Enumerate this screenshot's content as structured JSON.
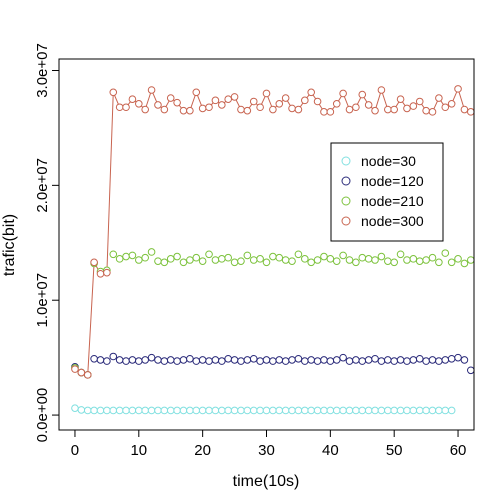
{
  "chart_data": {
    "type": "scatter",
    "title": "",
    "xlabel": "time(10s)",
    "ylabel": "trafic(bit)",
    "xlim": [
      -2.5,
      62.5
    ],
    "ylim": [
      -1300000,
      31000000
    ],
    "x_ticks": [
      0,
      10,
      20,
      30,
      40,
      50,
      60
    ],
    "x_tick_labels": [
      "0",
      "10",
      "20",
      "30",
      "40",
      "50",
      "60"
    ],
    "y_ticks": [
      0,
      10000000,
      20000000,
      30000000
    ],
    "y_tick_labels": [
      "0.0e+00",
      "1.0e+07",
      "2.0e+07",
      "3.0e+07"
    ],
    "grid": false,
    "legend_position": "right",
    "series": [
      {
        "name": "node=30",
        "color": "#80e0e0",
        "x": [
          0,
          1,
          2,
          3,
          4,
          5,
          6,
          7,
          8,
          9,
          10,
          11,
          12,
          13,
          14,
          15,
          16,
          17,
          18,
          19,
          20,
          21,
          22,
          23,
          24,
          25,
          26,
          27,
          28,
          29,
          30,
          31,
          32,
          33,
          34,
          35,
          36,
          37,
          38,
          39,
          40,
          41,
          42,
          43,
          44,
          45,
          46,
          47,
          48,
          49,
          50,
          51,
          52,
          53,
          54,
          55,
          56,
          57,
          58,
          59
        ],
        "y": [
          600000,
          450000,
          400000,
          400000,
          400000,
          400000,
          400000,
          400000,
          400000,
          400000,
          400000,
          400000,
          400000,
          400000,
          400000,
          400000,
          400000,
          400000,
          400000,
          400000,
          400000,
          400000,
          400000,
          400000,
          400000,
          400000,
          400000,
          400000,
          400000,
          400000,
          400000,
          400000,
          400000,
          400000,
          400000,
          400000,
          400000,
          400000,
          400000,
          400000,
          400000,
          400000,
          400000,
          400000,
          400000,
          400000,
          400000,
          400000,
          400000,
          400000,
          400000,
          400000,
          400000,
          400000,
          400000,
          400000,
          400000,
          400000,
          400000,
          400000
        ]
      },
      {
        "name": "node=120",
        "color": "#2a2a7a",
        "x": [
          0,
          1,
          2,
          3,
          4,
          5,
          6,
          7,
          8,
          9,
          10,
          11,
          12,
          13,
          14,
          15,
          16,
          17,
          18,
          19,
          20,
          21,
          22,
          23,
          24,
          25,
          26,
          27,
          28,
          29,
          30,
          31,
          32,
          33,
          34,
          35,
          36,
          37,
          38,
          39,
          40,
          41,
          42,
          43,
          44,
          45,
          46,
          47,
          48,
          49,
          50,
          51,
          52,
          53,
          54,
          55,
          56,
          57,
          58,
          59,
          60,
          61,
          62
        ],
        "y": [
          4200000,
          3700000,
          3500000,
          4900000,
          4800000,
          4700000,
          5100000,
          4800000,
          4700000,
          4800000,
          4700000,
          4800000,
          5000000,
          4800000,
          4700000,
          4800000,
          4700000,
          4800000,
          4900000,
          4700000,
          4800000,
          4700000,
          4800000,
          4700000,
          4900000,
          4800000,
          4700000,
          4800000,
          4900000,
          4700000,
          4800000,
          4700000,
          4800000,
          4700000,
          4800000,
          4900000,
          4700000,
          4800000,
          4700000,
          4800000,
          4700000,
          4800000,
          5000000,
          4700000,
          4800000,
          4700000,
          4800000,
          4900000,
          4700000,
          4800000,
          4700000,
          4800000,
          4700000,
          4800000,
          4900000,
          4700000,
          4800000,
          4700000,
          4800000,
          4900000,
          5000000,
          4800000,
          3900000
        ]
      },
      {
        "name": "node=210",
        "color": "#7cc23c",
        "x": [
          0,
          1,
          2,
          3,
          4,
          5,
          6,
          7,
          8,
          9,
          10,
          11,
          12,
          13,
          14,
          15,
          16,
          17,
          18,
          19,
          20,
          21,
          22,
          23,
          24,
          25,
          26,
          27,
          28,
          29,
          30,
          31,
          32,
          33,
          34,
          35,
          36,
          37,
          38,
          39,
          40,
          41,
          42,
          43,
          44,
          45,
          46,
          47,
          48,
          49,
          50,
          51,
          52,
          53,
          54,
          55,
          56,
          57,
          58,
          59,
          60,
          61,
          62
        ],
        "y": [
          4100000,
          3700000,
          3500000,
          13200000,
          12500000,
          12600000,
          14000000,
          13600000,
          13800000,
          13900000,
          13500000,
          13700000,
          14200000,
          13400000,
          13300000,
          13600000,
          13800000,
          13300000,
          13500000,
          13700000,
          13400000,
          14000000,
          13500000,
          13600000,
          13700000,
          13300000,
          13400000,
          13900000,
          13500000,
          13600000,
          13300000,
          13800000,
          13700000,
          13500000,
          13400000,
          14000000,
          13600000,
          13300000,
          13500000,
          13800000,
          13600000,
          13400000,
          13900000,
          13500000,
          13300000,
          13700000,
          13600000,
          13500000,
          13800000,
          13400000,
          13300000,
          14000000,
          13500000,
          13600000,
          13400000,
          13500000,
          13700000,
          13300000,
          14100000,
          13300000,
          13600000,
          13200000,
          13500000
        ]
      },
      {
        "name": "node=300",
        "color": "#c86450",
        "x": [
          0,
          1,
          2,
          3,
          4,
          5,
          6,
          7,
          8,
          9,
          10,
          11,
          12,
          13,
          14,
          15,
          16,
          17,
          18,
          19,
          20,
          21,
          22,
          23,
          24,
          25,
          26,
          27,
          28,
          29,
          30,
          31,
          32,
          33,
          34,
          35,
          36,
          37,
          38,
          39,
          40,
          41,
          42,
          43,
          44,
          45,
          46,
          47,
          48,
          49,
          50,
          51,
          52,
          53,
          54,
          55,
          56,
          57,
          58,
          59,
          60,
          61,
          62
        ],
        "y": [
          4000000,
          3700000,
          3500000,
          13300000,
          12300000,
          12400000,
          28100000,
          26800000,
          26800000,
          27500000,
          27100000,
          26600000,
          28300000,
          27000000,
          26600000,
          27600000,
          27200000,
          26500000,
          26500000,
          28100000,
          26700000,
          26800000,
          27400000,
          27000000,
          27500000,
          27700000,
          26600000,
          26500000,
          27300000,
          26800000,
          28000000,
          26600000,
          27100000,
          27600000,
          26700000,
          26600000,
          27400000,
          28100000,
          27300000,
          26400000,
          26400000,
          27100000,
          28000000,
          26600000,
          26800000,
          27900000,
          27000000,
          26500000,
          28300000,
          26600000,
          26600000,
          27500000,
          26700000,
          26900000,
          27300000,
          26500000,
          26400000,
          27600000,
          26800000,
          27100000,
          28400000,
          26600000,
          26400000
        ]
      }
    ]
  }
}
